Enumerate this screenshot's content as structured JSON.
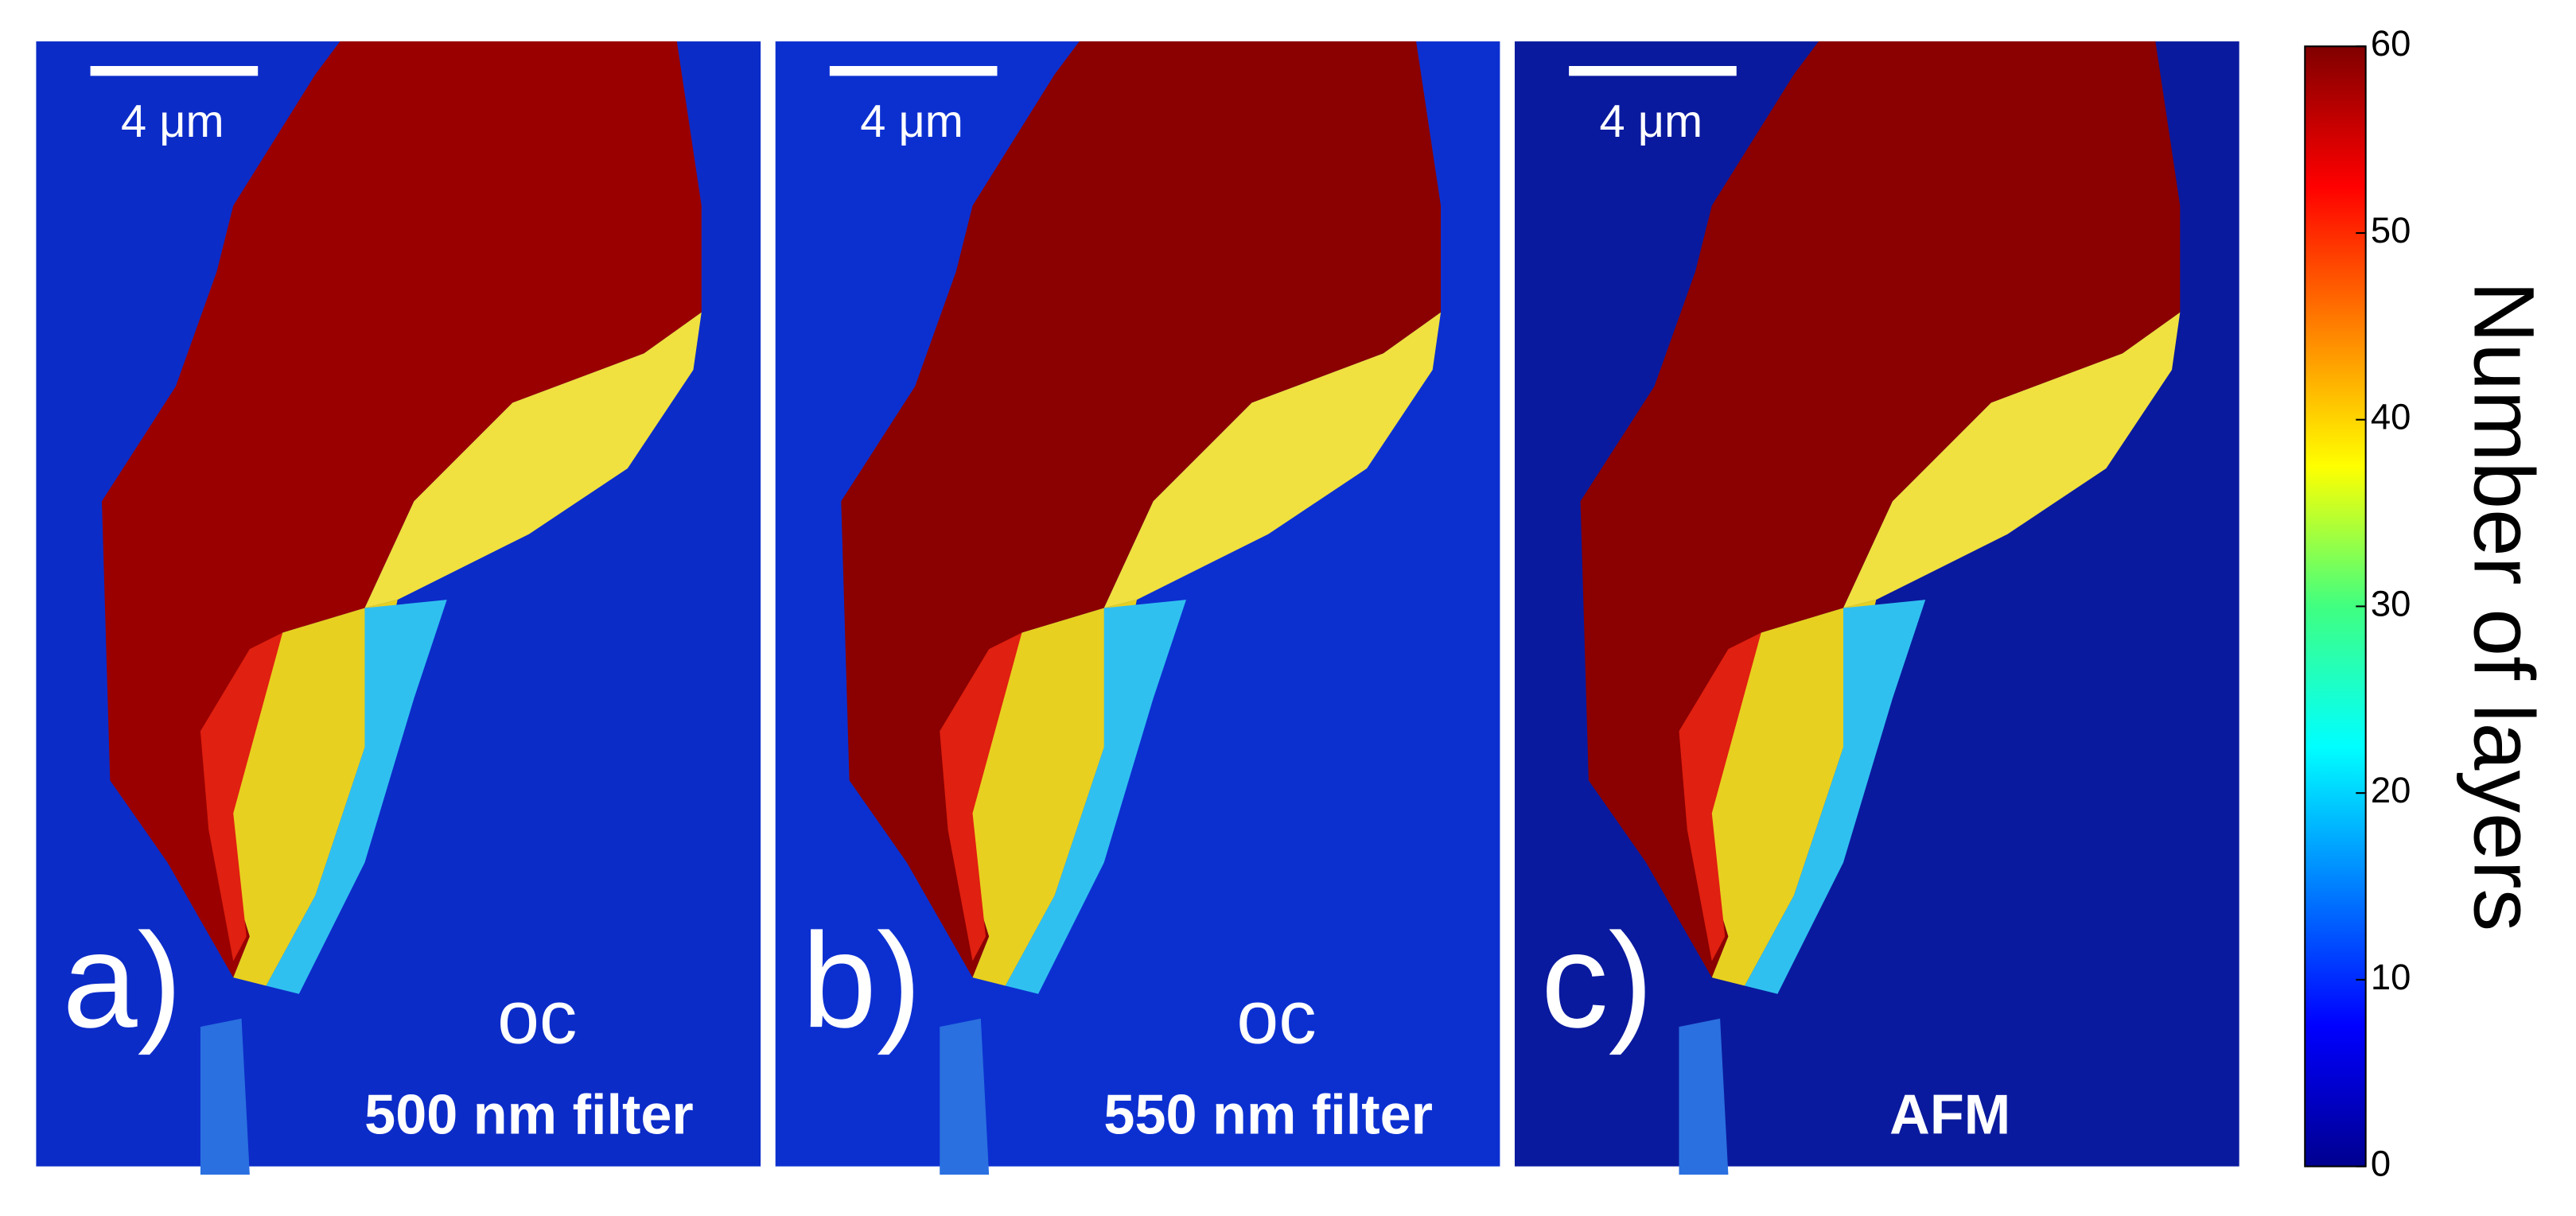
{
  "panels": [
    {
      "label": "a)",
      "scale_bar": "4 μm",
      "method": "oc",
      "filter": "500 nm filter"
    },
    {
      "label": "b)",
      "scale_bar": "4 μm",
      "method": "oc",
      "filter": "550 nm filter"
    },
    {
      "label": "c)",
      "scale_bar": "4 μm",
      "method": "AFM"
    }
  ],
  "colorbar": {
    "label": "Number of layers",
    "lim": [
      0,
      60
    ],
    "ticks": [
      0,
      10,
      20,
      30,
      40,
      50,
      60
    ]
  }
}
